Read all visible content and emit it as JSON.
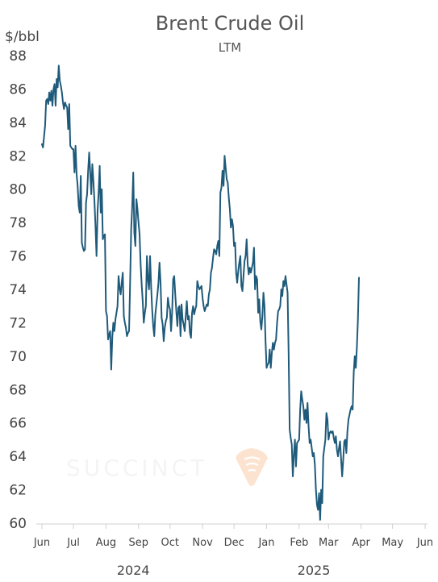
{
  "chart_data": {
    "type": "line",
    "title": "Brent Crude Oil",
    "subtitle": "LTM",
    "ylabel": "$/bbl",
    "ylim": [
      60,
      88
    ],
    "yticks": [
      60,
      62,
      64,
      66,
      68,
      70,
      72,
      74,
      76,
      78,
      80,
      82,
      84,
      86,
      88
    ],
    "xlim": [
      0,
      365
    ],
    "x_ticks": [
      {
        "label": "Jun",
        "x": 0
      },
      {
        "label": "Jul",
        "x": 30
      },
      {
        "label": "Aug",
        "x": 61
      },
      {
        "label": "Sep",
        "x": 92
      },
      {
        "label": "Oct",
        "x": 122
      },
      {
        "label": "Nov",
        "x": 153
      },
      {
        "label": "Dec",
        "x": 183
      },
      {
        "label": "Jan",
        "x": 214
      },
      {
        "label": "Feb",
        "x": 245
      },
      {
        "label": "Mar",
        "x": 273
      },
      {
        "label": "Apr",
        "x": 304
      },
      {
        "label": "May",
        "x": 334
      },
      {
        "label": "Jun",
        "x": 365
      }
    ],
    "x_group_labels": [
      {
        "label": "2024",
        "x": 87
      },
      {
        "label": "2025",
        "x": 259
      }
    ],
    "series": [
      {
        "name": "",
        "color": "#1f5a7a",
        "points": [
          [
            0,
            82.7
          ],
          [
            1,
            82.5
          ],
          [
            3,
            83.8
          ],
          [
            4,
            85.3
          ],
          [
            5,
            85.4
          ],
          [
            6,
            85.1
          ],
          [
            7,
            85.8
          ],
          [
            8,
            85.3
          ],
          [
            9,
            85.9
          ],
          [
            10,
            85.0
          ],
          [
            11,
            86.0
          ],
          [
            12,
            86.3
          ],
          [
            13,
            85.0
          ],
          [
            14,
            86.6
          ],
          [
            15,
            86.1
          ],
          [
            16,
            87.4
          ],
          [
            17,
            86.5
          ],
          [
            18,
            86.2
          ],
          [
            19,
            85.8
          ],
          [
            20,
            85.2
          ],
          [
            21,
            84.8
          ],
          [
            22,
            85.2
          ],
          [
            23,
            85.0
          ],
          [
            24,
            84.9
          ],
          [
            25,
            83.6
          ],
          [
            26,
            85.1
          ],
          [
            27,
            82.6
          ],
          [
            28,
            82.5
          ],
          [
            29,
            82.4
          ],
          [
            30,
            82.4
          ],
          [
            31,
            81.0
          ],
          [
            32,
            82.6
          ],
          [
            33,
            80.9
          ],
          [
            34,
            80.2
          ],
          [
            35,
            79.0
          ],
          [
            36,
            78.6
          ],
          [
            37,
            80.8
          ],
          [
            38,
            76.8
          ],
          [
            39,
            76.5
          ],
          [
            40,
            76.3
          ],
          [
            41,
            76.4
          ],
          [
            42,
            79.2
          ],
          [
            43,
            79.7
          ],
          [
            44,
            81.1
          ],
          [
            45,
            82.2
          ],
          [
            46,
            81.0
          ],
          [
            47,
            79.7
          ],
          [
            48,
            81.5
          ],
          [
            49,
            80.5
          ],
          [
            50,
            79.3
          ],
          [
            51,
            77.8
          ],
          [
            52,
            76.0
          ],
          [
            53,
            78.7
          ],
          [
            54,
            79.8
          ],
          [
            55,
            81.4
          ],
          [
            56,
            78.6
          ],
          [
            57,
            80.0
          ],
          [
            58,
            77.0
          ],
          [
            59,
            77.2
          ],
          [
            60,
            77.3
          ],
          [
            61,
            72.7
          ],
          [
            62,
            72.4
          ],
          [
            63,
            71.0
          ],
          [
            64,
            71.3
          ],
          [
            65,
            71.5
          ],
          [
            66,
            69.2
          ],
          [
            67,
            71.1
          ],
          [
            68,
            72.0
          ],
          [
            69,
            71.5
          ],
          [
            70,
            72.2
          ],
          [
            71,
            72.6
          ],
          [
            72,
            73.0
          ],
          [
            73,
            74.8
          ],
          [
            74,
            74.1
          ],
          [
            75,
            73.7
          ],
          [
            76,
            74.4
          ],
          [
            77,
            75.0
          ],
          [
            78,
            72.4
          ],
          [
            79,
            72.0
          ],
          [
            80,
            71.7
          ],
          [
            81,
            71.2
          ],
          [
            82,
            71.4
          ],
          [
            83,
            71.5
          ],
          [
            84,
            74.4
          ],
          [
            85,
            77.6
          ],
          [
            86,
            79.0
          ],
          [
            87,
            81.0
          ],
          [
            88,
            77.4
          ],
          [
            89,
            76.6
          ],
          [
            90,
            79.4
          ],
          [
            91,
            78.8
          ],
          [
            92,
            78.0
          ],
          [
            93,
            77.3
          ],
          [
            94,
            75.5
          ],
          [
            95,
            74.3
          ],
          [
            96,
            73.3
          ],
          [
            97,
            72.0
          ],
          [
            98,
            72.6
          ],
          [
            99,
            73.0
          ],
          [
            100,
            76.0
          ],
          [
            101,
            74.6
          ],
          [
            102,
            74.0
          ],
          [
            103,
            76.0
          ],
          [
            104,
            74.2
          ],
          [
            105,
            72.8
          ],
          [
            106,
            71.8
          ],
          [
            107,
            71.2
          ],
          [
            108,
            72.5
          ],
          [
            109,
            73.1
          ],
          [
            110,
            73.7
          ],
          [
            111,
            74.4
          ],
          [
            112,
            75.6
          ],
          [
            113,
            74.4
          ],
          [
            114,
            72.3
          ],
          [
            115,
            71.9
          ],
          [
            116,
            70.9
          ],
          [
            117,
            71.7
          ],
          [
            118,
            72.1
          ],
          [
            119,
            72.3
          ],
          [
            120,
            73.5
          ],
          [
            121,
            73.0
          ],
          [
            122,
            72.8
          ],
          [
            123,
            71.5
          ],
          [
            124,
            72.6
          ],
          [
            125,
            74.6
          ],
          [
            126,
            74.8
          ],
          [
            127,
            73.7
          ],
          [
            128,
            72.7
          ],
          [
            129,
            71.8
          ],
          [
            130,
            72.9
          ],
          [
            131,
            73.0
          ],
          [
            132,
            71.2
          ],
          [
            133,
            73.1
          ],
          [
            134,
            72.2
          ],
          [
            135,
            71.9
          ],
          [
            136,
            71.5
          ],
          [
            137,
            72.4
          ],
          [
            138,
            73.3
          ],
          [
            139,
            72.2
          ],
          [
            140,
            72.4
          ],
          [
            141,
            71.4
          ],
          [
            142,
            71.1
          ],
          [
            143,
            72.6
          ],
          [
            144,
            73.0
          ],
          [
            145,
            72.5
          ],
          [
            146,
            72.8
          ],
          [
            147,
            73.0
          ],
          [
            148,
            74.5
          ],
          [
            149,
            74.2
          ],
          [
            150,
            74.0
          ],
          [
            151,
            74.1
          ],
          [
            152,
            74.2
          ],
          [
            153,
            73.5
          ],
          [
            154,
            73.0
          ],
          [
            155,
            72.7
          ],
          [
            156,
            72.9
          ],
          [
            157,
            73.1
          ],
          [
            158,
            73.0
          ],
          [
            159,
            73.7
          ],
          [
            160,
            74.0
          ],
          [
            161,
            75.0
          ],
          [
            162,
            75.3
          ],
          [
            163,
            75.9
          ],
          [
            164,
            76.4
          ],
          [
            165,
            76.3
          ],
          [
            166,
            76.1
          ],
          [
            167,
            76.6
          ],
          [
            168,
            76.9
          ],
          [
            169,
            76.0
          ],
          [
            170,
            79.8
          ],
          [
            171,
            80.1
          ],
          [
            172,
            81.1
          ],
          [
            173,
            80.2
          ],
          [
            174,
            82.0
          ],
          [
            175,
            81.3
          ],
          [
            176,
            80.6
          ],
          [
            177,
            80.4
          ],
          [
            178,
            79.5
          ],
          [
            179,
            78.8
          ],
          [
            180,
            77.7
          ],
          [
            181,
            78.2
          ],
          [
            182,
            77.8
          ],
          [
            183,
            76.6
          ],
          [
            184,
            76.8
          ],
          [
            185,
            75.0
          ],
          [
            186,
            74.4
          ],
          [
            187,
            75.1
          ],
          [
            188,
            75.6
          ],
          [
            189,
            76.0
          ],
          [
            190,
            74.2
          ],
          [
            191,
            73.9
          ],
          [
            192,
            74.8
          ],
          [
            193,
            75.7
          ],
          [
            194,
            76.0
          ],
          [
            195,
            77.0
          ],
          [
            196,
            75.5
          ],
          [
            197,
            74.9
          ],
          [
            198,
            75.3
          ],
          [
            199,
            75.0
          ],
          [
            200,
            75.3
          ],
          [
            201,
            75.6
          ],
          [
            202,
            76.5
          ],
          [
            203,
            74.0
          ],
          [
            204,
            74.8
          ],
          [
            205,
            74.6
          ],
          [
            206,
            72.6
          ],
          [
            207,
            73.4
          ],
          [
            208,
            72.1
          ],
          [
            209,
            71.6
          ],
          [
            210,
            72.4
          ],
          [
            211,
            73.8
          ],
          [
            212,
            73.0
          ],
          [
            213,
            70.9
          ],
          [
            214,
            69.3
          ],
          [
            215,
            69.5
          ],
          [
            216,
            69.6
          ],
          [
            217,
            70.4
          ],
          [
            218,
            69.3
          ],
          [
            219,
            70.2
          ],
          [
            220,
            70.8
          ],
          [
            221,
            70.4
          ],
          [
            222,
            70.8
          ],
          [
            223,
            71.0
          ],
          [
            224,
            72.0
          ],
          [
            225,
            72.7
          ],
          [
            226,
            72.8
          ],
          [
            227,
            73.0
          ],
          [
            228,
            74.0
          ],
          [
            229,
            73.6
          ],
          [
            230,
            74.5
          ],
          [
            231,
            74.2
          ],
          [
            232,
            74.8
          ],
          [
            233,
            74.3
          ],
          [
            234,
            73.8
          ],
          [
            235,
            70.2
          ],
          [
            236,
            65.6
          ],
          [
            237,
            65.1
          ],
          [
            238,
            64.7
          ],
          [
            239,
            62.8
          ],
          [
            240,
            64.1
          ],
          [
            241,
            65.0
          ],
          [
            242,
            63.4
          ],
          [
            243,
            64.8
          ],
          [
            244,
            64.9
          ],
          [
            245,
            65.0
          ],
          [
            246,
            66.8
          ],
          [
            247,
            67.9
          ],
          [
            248,
            67.4
          ],
          [
            249,
            67.0
          ],
          [
            250,
            66.2
          ],
          [
            251,
            66.8
          ],
          [
            252,
            66.0
          ],
          [
            253,
            67.2
          ],
          [
            254,
            65.8
          ],
          [
            255,
            64.8
          ],
          [
            256,
            65.0
          ],
          [
            257,
            64.5
          ],
          [
            258,
            64.0
          ],
          [
            259,
            64.2
          ],
          [
            260,
            63.5
          ],
          [
            261,
            62.0
          ],
          [
            262,
            61.1
          ],
          [
            263,
            60.8
          ],
          [
            264,
            61.8
          ],
          [
            265,
            60.2
          ],
          [
            266,
            62.0
          ],
          [
            267,
            61.2
          ],
          [
            268,
            64.0
          ],
          [
            269,
            64.5
          ],
          [
            270,
            65.0
          ],
          [
            271,
            66.6
          ],
          [
            272,
            66.2
          ],
          [
            273,
            65.0
          ],
          [
            274,
            65.4
          ],
          [
            275,
            65.5
          ],
          [
            276,
            65.4
          ],
          [
            277,
            65.5
          ],
          [
            278,
            65.1
          ],
          [
            279,
            64.8
          ],
          [
            280,
            65.2
          ],
          [
            281,
            64.4
          ],
          [
            282,
            64.0
          ],
          [
            283,
            64.5
          ],
          [
            284,
            64.9
          ],
          [
            285,
            63.8
          ],
          [
            286,
            62.8
          ],
          [
            287,
            63.8
          ],
          [
            288,
            64.9
          ],
          [
            289,
            65.0
          ],
          [
            290,
            64.2
          ],
          [
            291,
            65.5
          ],
          [
            292,
            66.2
          ],
          [
            293,
            66.5
          ],
          [
            294,
            66.8
          ],
          [
            295,
            67.0
          ],
          [
            296,
            66.8
          ],
          [
            297,
            69.0
          ],
          [
            298,
            70.0
          ],
          [
            299,
            69.3
          ],
          [
            300,
            70.5
          ],
          [
            301,
            72.2
          ],
          [
            302,
            74.7
          ]
        ]
      }
    ]
  }
}
